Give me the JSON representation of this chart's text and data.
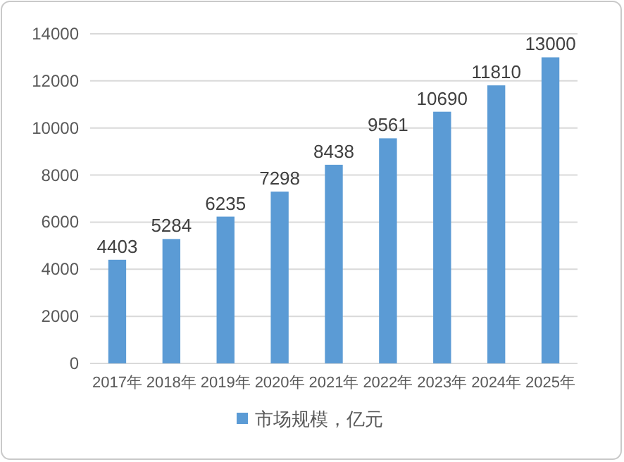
{
  "chart_data": {
    "type": "bar",
    "categories": [
      "2017年",
      "2018年",
      "2019年",
      "2020年",
      "2021年",
      "2022年",
      "2023年",
      "2024年",
      "2025年"
    ],
    "series": [
      {
        "name": "市场规模，亿元",
        "color": "#5b9bd5",
        "values": [
          4403,
          5284,
          6235,
          7298,
          8438,
          9561,
          10690,
          11810,
          13000
        ]
      }
    ],
    "ylim": [
      0,
      14000
    ],
    "yticks": [
      0,
      2000,
      4000,
      6000,
      8000,
      10000,
      12000,
      14000
    ],
    "grid": "y",
    "data_labels": true,
    "legend": "bottom"
  }
}
